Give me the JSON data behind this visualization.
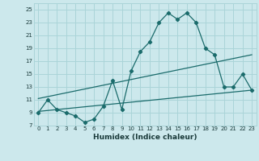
{
  "title": "",
  "xlabel": "Humidex (Indice chaleur)",
  "bg_color": "#cce8ec",
  "line_color": "#1a6b6b",
  "grid_color": "#aad4d8",
  "xlim": [
    -0.5,
    23.5
  ],
  "ylim": [
    7,
    26
  ],
  "xticks": [
    0,
    1,
    2,
    3,
    4,
    5,
    6,
    7,
    8,
    9,
    10,
    11,
    12,
    13,
    14,
    15,
    16,
    17,
    18,
    19,
    20,
    21,
    22,
    23
  ],
  "yticks": [
    7,
    9,
    11,
    13,
    15,
    17,
    19,
    21,
    23,
    25
  ],
  "line1_x": [
    0,
    1,
    2,
    3,
    4,
    5,
    6,
    7,
    8,
    9,
    10,
    11,
    12,
    13,
    14,
    15,
    16,
    17,
    18,
    19,
    20,
    21,
    22,
    23
  ],
  "line1_y": [
    9,
    11,
    9.5,
    9,
    8.5,
    7.5,
    8,
    10,
    14,
    9.5,
    15.5,
    18.5,
    20,
    23,
    24.5,
    23.5,
    24.5,
    23,
    19,
    18,
    13,
    13,
    15,
    12.5
  ],
  "line2_x": [
    0,
    23
  ],
  "line2_y": [
    9.2,
    12.5
  ],
  "line3_x": [
    0,
    23
  ],
  "line3_y": [
    11.2,
    18.0
  ]
}
